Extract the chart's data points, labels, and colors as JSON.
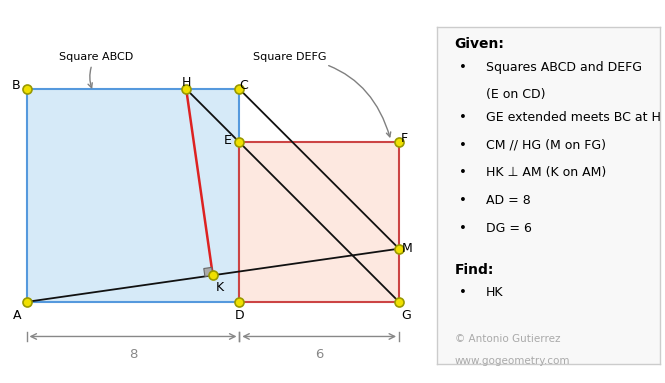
{
  "AD": 8,
  "DG": 6,
  "bg_color": "#ffffff",
  "square_abcd_fill": "#d6eaf8",
  "square_defg_fill": "#fde8e0",
  "square_abcd_edge": "#5599dd",
  "square_defg_edge": "#cc4444",
  "point_color": "#f0e000",
  "point_edge": "#999900",
  "title_label_abcd": "Square ABCD",
  "title_label_defg": "Square DEFG",
  "given_title": "Given:",
  "given_items": [
    "Squares ABCD and DEFG\n(E on CD)",
    "GE extended meets BC at H",
    "CM // HG (M on FG)",
    "HK ⊥ AM (K on AM)",
    "AD = 8",
    "DG = 6"
  ],
  "find_title": "Find:",
  "find_items": [
    "HK"
  ],
  "copyright": "© Antonio Gutierrez\nwww.gogeometry.com",
  "dim_label_8": "8",
  "dim_label_6": "6",
  "dim_color": "#888888",
  "line_color_black": "#111111",
  "line_color_red": "#dd2222",
  "right_angle_fill": "#aaaaaa",
  "right_angle_edge": "#666666",
  "info_box_fill": "#f8f8f8",
  "info_box_edge": "#cccccc",
  "copyright_color": "#aaaaaa"
}
